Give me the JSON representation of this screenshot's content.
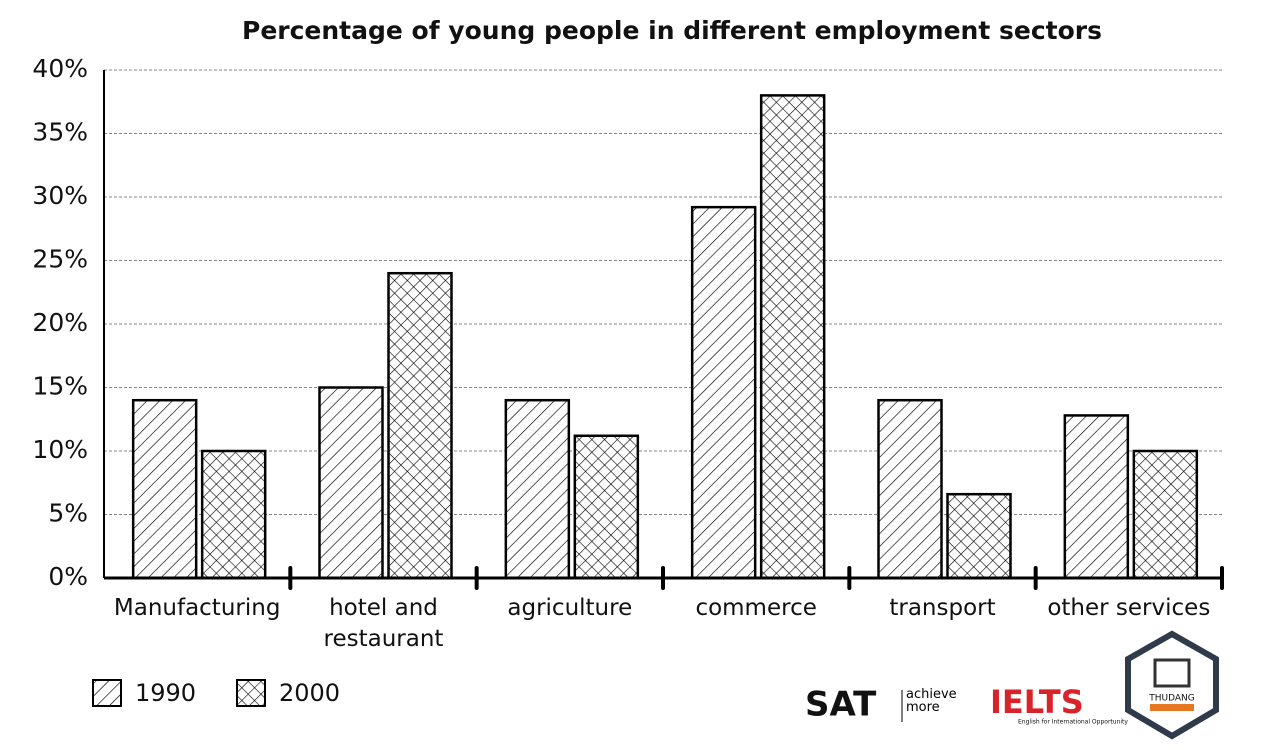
{
  "chart_data": {
    "type": "bar",
    "title": "Percentage of young people in different employment sectors",
    "categories": [
      "Manufacturing",
      "hotel and\nrestaurant",
      "agriculture",
      "commerce",
      "transport",
      "other services"
    ],
    "series": [
      {
        "name": "1990",
        "color": "#000000",
        "pattern": "diagonal",
        "values": [
          14,
          15,
          14,
          29.2,
          14,
          12.8
        ]
      },
      {
        "name": "2000",
        "color": "#000000",
        "pattern": "cross",
        "values": [
          10,
          24,
          11.2,
          38,
          6.6,
          10
        ]
      }
    ],
    "ylim": [
      0,
      40
    ],
    "yticks": [
      {
        "value": 0,
        "label": "0%"
      },
      {
        "value": 5,
        "label": "5%"
      },
      {
        "value": 10,
        "label": "10%"
      },
      {
        "value": 15,
        "label": "15%"
      },
      {
        "value": 20,
        "label": "20%"
      },
      {
        "value": 25,
        "label": "25%"
      },
      {
        "value": 30,
        "label": "30%"
      },
      {
        "value": 35,
        "label": "35%"
      },
      {
        "value": 40,
        "label": "40%"
      }
    ],
    "grid": true,
    "legend": "bottom-left"
  },
  "footer": {
    "sat": "SAT",
    "sat_tagline": "achieve more",
    "ielts": "IELTS",
    "ielts_tagline": "English for International Opportunity",
    "badge": "THUDANG"
  }
}
